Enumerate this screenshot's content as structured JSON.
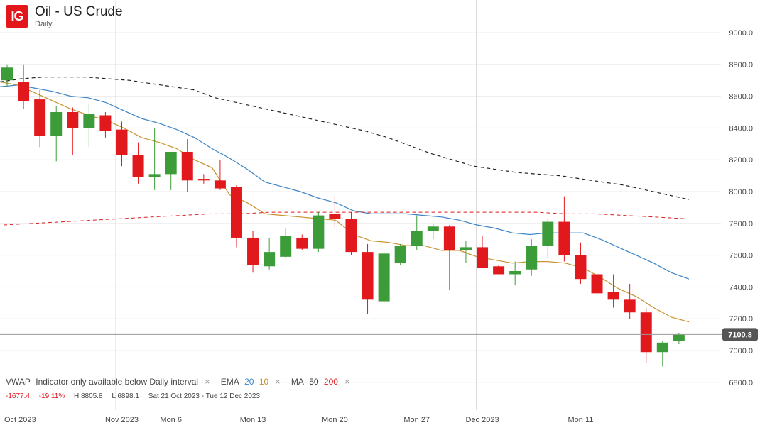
{
  "header": {
    "logo_text": "IG",
    "title": "Oil - US Crude",
    "subtitle": "Daily"
  },
  "colors": {
    "logo": "#e3161b",
    "up": "#3d9c3a",
    "down": "#e1191d",
    "ema20": "#3d85c6",
    "ema10": "#c8922c",
    "ma50": "#222222",
    "ma200": "#e1191d",
    "grid": "#ececec",
    "price_tag": "#555555"
  },
  "indicators": {
    "vwap_label": "VWAP",
    "vwap_note": "Indicator only available below Daily interval",
    "ema_label": "EMA",
    "ema_fast": "20",
    "ema_slow": "10",
    "ma_label": "MA",
    "ma_fast": "50",
    "ma_slow": "200",
    "close_symbol": "×"
  },
  "stats": {
    "change": "-1677.4",
    "change_pct": "-19.11%",
    "high": "H 8805.8",
    "low": "L 6898.1",
    "range": "Sat 21 Oct 2023 - Tue 12 Dec 2023"
  },
  "chart_data": {
    "type": "candlestick",
    "title": "Oil - US Crude",
    "interval": "Daily",
    "y_ticks": [
      "6800.0",
      "7000.0",
      "7200.0",
      "7400.0",
      "7600.0",
      "7800.0",
      "8000.0",
      "8200.0",
      "8400.0",
      "8600.0",
      "8800.0",
      "9000.0"
    ],
    "ylim": [
      6700,
      9150
    ],
    "x_labels": [
      {
        "label": "Oct 2023",
        "date": "2023-10-23"
      },
      {
        "label": "Nov 2023",
        "date": "2023-11-01"
      },
      {
        "label": "Mon 6",
        "date": "2023-11-06"
      },
      {
        "label": "Mon 13",
        "date": "2023-11-13"
      },
      {
        "label": "Mon 20",
        "date": "2023-11-20"
      },
      {
        "label": "Mon 27",
        "date": "2023-11-27"
      },
      {
        "label": "Dec 2023",
        "date": "2023-12-01"
      },
      {
        "label": "Mon 11",
        "date": "2023-12-11"
      }
    ],
    "vertical_grid_dates": [
      "2023-11-01",
      "2023-12-01"
    ],
    "current_price": "7100.8",
    "candles": [
      {
        "date": "2023-10-23",
        "o": 8700,
        "h": 8800,
        "l": 8660,
        "c": 8780
      },
      {
        "date": "2023-10-24",
        "o": 8690,
        "h": 8800,
        "l": 8520,
        "c": 8570
      },
      {
        "date": "2023-10-25",
        "o": 8580,
        "h": 8640,
        "l": 8280,
        "c": 8350
      },
      {
        "date": "2023-10-26",
        "o": 8350,
        "h": 8540,
        "l": 8190,
        "c": 8500
      },
      {
        "date": "2023-10-27",
        "o": 8500,
        "h": 8530,
        "l": 8230,
        "c": 8400
      },
      {
        "date": "2023-10-30",
        "o": 8400,
        "h": 8550,
        "l": 8280,
        "c": 8490
      },
      {
        "date": "2023-10-31",
        "o": 8480,
        "h": 8500,
        "l": 8340,
        "c": 8380
      },
      {
        "date": "2023-11-01",
        "o": 8390,
        "h": 8440,
        "l": 8160,
        "c": 8230
      },
      {
        "date": "2023-11-02",
        "o": 8230,
        "h": 8310,
        "l": 8050,
        "c": 8090
      },
      {
        "date": "2023-11-03",
        "o": 8090,
        "h": 8400,
        "l": 8010,
        "c": 8110
      },
      {
        "date": "2023-11-06",
        "o": 8110,
        "h": 8250,
        "l": 8010,
        "c": 8250
      },
      {
        "date": "2023-11-07",
        "o": 8250,
        "h": 8330,
        "l": 8000,
        "c": 8070
      },
      {
        "date": "2023-11-08",
        "o": 8080,
        "h": 8110,
        "l": 8050,
        "c": 8070
      },
      {
        "date": "2023-11-09",
        "o": 8070,
        "h": 8200,
        "l": 8010,
        "c": 8020
      },
      {
        "date": "2023-11-10",
        "o": 8030,
        "h": 8040,
        "l": 7650,
        "c": 7710
      },
      {
        "date": "2023-11-13",
        "o": 7710,
        "h": 7750,
        "l": 7490,
        "c": 7540
      },
      {
        "date": "2023-11-14",
        "o": 7530,
        "h": 7710,
        "l": 7510,
        "c": 7620
      },
      {
        "date": "2023-11-15",
        "o": 7590,
        "h": 7770,
        "l": 7580,
        "c": 7720
      },
      {
        "date": "2023-11-16",
        "o": 7710,
        "h": 7730,
        "l": 7630,
        "c": 7640
      },
      {
        "date": "2023-11-17",
        "o": 7640,
        "h": 7870,
        "l": 7620,
        "c": 7850
      },
      {
        "date": "2023-11-20",
        "o": 7860,
        "h": 7970,
        "l": 7770,
        "c": 7830
      },
      {
        "date": "2023-11-21",
        "o": 7830,
        "h": 7870,
        "l": 7600,
        "c": 7620
      },
      {
        "date": "2023-11-22",
        "o": 7620,
        "h": 7670,
        "l": 7230,
        "c": 7320
      },
      {
        "date": "2023-11-23",
        "o": 7310,
        "h": 7620,
        "l": 7300,
        "c": 7610
      },
      {
        "date": "2023-11-24",
        "o": 7550,
        "h": 7670,
        "l": 7540,
        "c": 7660
      },
      {
        "date": "2023-11-27",
        "o": 7660,
        "h": 7850,
        "l": 7630,
        "c": 7750
      },
      {
        "date": "2023-11-28",
        "o": 7750,
        "h": 7800,
        "l": 7700,
        "c": 7780
      },
      {
        "date": "2023-11-29",
        "o": 7780,
        "h": 7790,
        "l": 7380,
        "c": 7630
      },
      {
        "date": "2023-11-30",
        "o": 7630,
        "h": 7690,
        "l": 7550,
        "c": 7650
      },
      {
        "date": "2023-12-01",
        "o": 7650,
        "h": 7720,
        "l": 7520,
        "c": 7520
      },
      {
        "date": "2023-12-04",
        "o": 7530,
        "h": 7540,
        "l": 7480,
        "c": 7480
      },
      {
        "date": "2023-12-05",
        "o": 7480,
        "h": 7560,
        "l": 7410,
        "c": 7500
      },
      {
        "date": "2023-12-06",
        "o": 7510,
        "h": 7700,
        "l": 7470,
        "c": 7660
      },
      {
        "date": "2023-12-07",
        "o": 7660,
        "h": 7830,
        "l": 7580,
        "c": 7810
      },
      {
        "date": "2023-12-08",
        "o": 7810,
        "h": 7970,
        "l": 7560,
        "c": 7600
      },
      {
        "date": "2023-12-11",
        "o": 7600,
        "h": 7680,
        "l": 7420,
        "c": 7450
      },
      {
        "date": "2023-12-12",
        "o": 7480,
        "h": 7510,
        "l": 7360,
        "c": 7360
      },
      {
        "date": "2023-12-13",
        "o": 7370,
        "h": 7480,
        "l": 7270,
        "c": 7320
      },
      {
        "date": "2023-12-14",
        "o": 7320,
        "h": 7420,
        "l": 7200,
        "c": 7240
      },
      {
        "date": "2023-12-15",
        "o": 7240,
        "h": 7270,
        "l": 6920,
        "c": 6990
      },
      {
        "date": "2023-12-18",
        "o": 6990,
        "h": 7060,
        "l": 6900,
        "c": 7050
      },
      {
        "date": "2023-12-19",
        "o": 7060,
        "h": 7110,
        "l": 7040,
        "c": 7100
      }
    ],
    "series": [
      {
        "name": "EMA 20",
        "color_key": "ema20",
        "values": [
          8660,
          8670,
          8650,
          8630,
          8600,
          8590,
          8560,
          8510,
          8460,
          8430,
          8390,
          8340,
          8270,
          8210,
          8140,
          8060,
          8030,
          8000,
          7960,
          7930,
          7880,
          7860,
          7860,
          7860,
          7850,
          7840,
          7820,
          7790,
          7770,
          7740,
          7730,
          7740,
          7740,
          7740,
          7700,
          7650,
          7600,
          7550,
          7490,
          7450
        ]
      },
      {
        "name": "EMA 10",
        "color_key": "ema10",
        "values": [
          8690,
          8670,
          8620,
          8570,
          8520,
          8480,
          8450,
          8400,
          8340,
          8310,
          8270,
          8200,
          8150,
          7980,
          7930,
          7860,
          7850,
          7840,
          7830,
          7820,
          7730,
          7690,
          7680,
          7660,
          7660,
          7630,
          7630,
          7590,
          7570,
          7550,
          7560,
          7560,
          7550,
          7520,
          7460,
          7390,
          7340,
          7270,
          7210,
          7180
        ]
      },
      {
        "name": "MA 50",
        "color_key": "ma50",
        "values": [
          8690,
          8710,
          8720,
          8720,
          8720,
          8710,
          8700,
          8680,
          8660,
          8640,
          8590,
          8560,
          8530,
          8500,
          8470,
          8440,
          8410,
          8380,
          8340,
          8290,
          8240,
          8200,
          8160,
          8140,
          8120,
          8110,
          8100,
          8080,
          8060,
          8040,
          8010,
          7980,
          7950
        ]
      },
      {
        "name": "MA 200",
        "color_key": "ma200",
        "values": [
          7790,
          7800,
          7810,
          7820,
          7830,
          7840,
          7850,
          7860,
          7860,
          7870,
          7870,
          7870,
          7870,
          7870,
          7870,
          7870,
          7870,
          7870,
          7870,
          7860,
          7860,
          7850,
          7840,
          7830
        ]
      }
    ]
  }
}
